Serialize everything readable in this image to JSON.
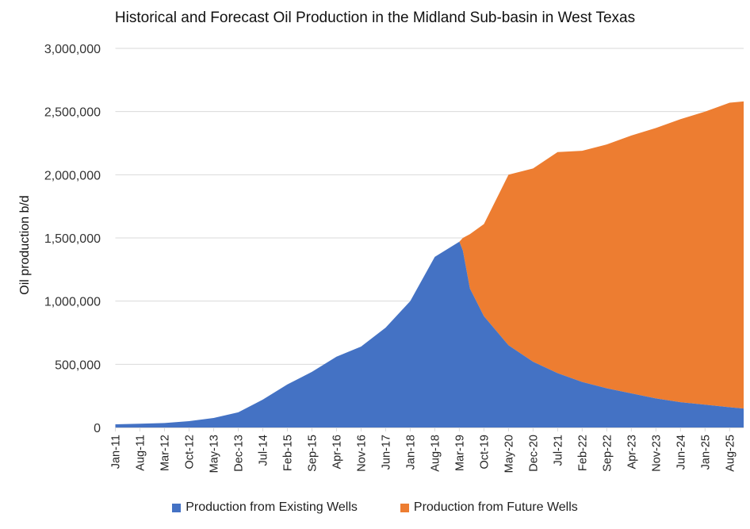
{
  "chart_data": {
    "type": "area",
    "stacked": true,
    "title": "Historical and Forecast Oil Production in the Midland Sub-basin in West Texas",
    "xlabel": "",
    "ylabel": "Oil production b/d",
    "ylim": [
      0,
      3000000
    ],
    "yticks": [
      0,
      500000,
      1000000,
      1500000,
      2000000,
      2500000,
      3000000
    ],
    "ytick_labels": [
      "0",
      "500,000",
      "1,000,000",
      "1,500,000",
      "2,000,000",
      "2,500,000",
      "3,000,000"
    ],
    "x_start": "Jan-11",
    "x_end": "Dec-25",
    "tick_labels": [
      "Jan-11",
      "Aug-11",
      "Mar-12",
      "Oct-12",
      "May-13",
      "Dec-13",
      "Jul-14",
      "Feb-15",
      "Sep-15",
      "Apr-16",
      "Nov-16",
      "Jun-17",
      "Jan-18",
      "Aug-18",
      "Mar-19",
      "Oct-19",
      "May-20",
      "Dec-20",
      "Jul-21",
      "Feb-22",
      "Sep-22",
      "Apr-23",
      "Nov-23",
      "Jun-24",
      "Jan-25",
      "Aug-25"
    ],
    "grid": true,
    "legend_position": "bottom",
    "x": [
      "Jan-11",
      "Aug-11",
      "Mar-12",
      "Oct-12",
      "May-13",
      "Dec-13",
      "Jul-14",
      "Feb-15",
      "Sep-15",
      "Apr-16",
      "Nov-16",
      "Jun-17",
      "Jan-18",
      "Aug-18",
      "Mar-19",
      "Apr-19",
      "Jun-19",
      "Oct-19",
      "May-20",
      "Dec-20",
      "Jul-21",
      "Feb-22",
      "Sep-22",
      "Apr-23",
      "Nov-23",
      "Jun-24",
      "Jan-25",
      "Aug-25",
      "Dec-25"
    ],
    "series": [
      {
        "name": "Production from Existing Wells",
        "color": "#4472C4",
        "values": [
          25000,
          30000,
          35000,
          50000,
          75000,
          120000,
          220000,
          340000,
          440000,
          560000,
          640000,
          790000,
          1000000,
          1350000,
          1470000,
          1400000,
          1100000,
          880000,
          650000,
          520000,
          430000,
          360000,
          310000,
          270000,
          230000,
          200000,
          180000,
          160000,
          150000
        ]
      },
      {
        "name": "Production from Future Wells",
        "color": "#ED7D31",
        "values": [
          0,
          0,
          0,
          0,
          0,
          0,
          0,
          0,
          0,
          0,
          0,
          0,
          0,
          0,
          0,
          100000,
          430000,
          730000,
          1350000,
          1530000,
          1750000,
          1830000,
          1930000,
          2040000,
          2140000,
          2240000,
          2320000,
          2410000,
          2430000
        ]
      }
    ]
  }
}
